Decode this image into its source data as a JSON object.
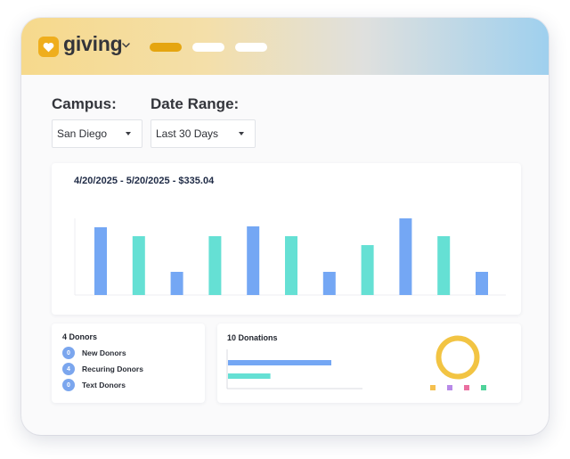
{
  "app": {
    "brand": "giving",
    "logo_icon": "heart-icon"
  },
  "nav": {
    "pills": [
      {
        "color": "#e5a510"
      },
      {
        "color": "#ffffff"
      },
      {
        "color": "#ffffff"
      }
    ]
  },
  "filters": {
    "campus_label": "Campus:",
    "campus_value": "San Diego",
    "date_label": "Date Range:",
    "date_value": "Last 30 Days"
  },
  "colors": {
    "blue": "#74a7f4",
    "teal": "#65e0d4",
    "accent": "#efae1d",
    "donut": "#f2c443"
  },
  "chart": {
    "title": "4/20/2025 - 5/20/2025 - $335.04"
  },
  "chart_data": {
    "type": "bar",
    "title": "4/20/2025 - 5/20/2025 - $335.04",
    "grid": false,
    "legend": "none",
    "values": [
      76,
      66,
      26,
      66,
      77,
      66,
      26,
      56,
      86,
      66,
      26
    ],
    "series_colors": [
      "blue",
      "teal",
      "blue",
      "teal",
      "blue",
      "teal",
      "blue",
      "teal",
      "blue",
      "teal",
      "blue"
    ],
    "ylim": [
      0,
      100
    ]
  },
  "donors": {
    "title": "4 Donors",
    "rows": [
      {
        "count": "0",
        "label": "New Donors"
      },
      {
        "count": "4",
        "label": "Recuring Donors"
      },
      {
        "count": "0",
        "label": "Text Donors"
      }
    ]
  },
  "donations": {
    "title": "10 Donations",
    "bars": [
      {
        "value": 1.0,
        "color": "#74a7f4"
      },
      {
        "value": 0.41,
        "color": "#65e0d4"
      }
    ],
    "legend_colors": [
      "#f5c04f",
      "#b88ae8",
      "#ea6fa0",
      "#4fd39a"
    ]
  }
}
